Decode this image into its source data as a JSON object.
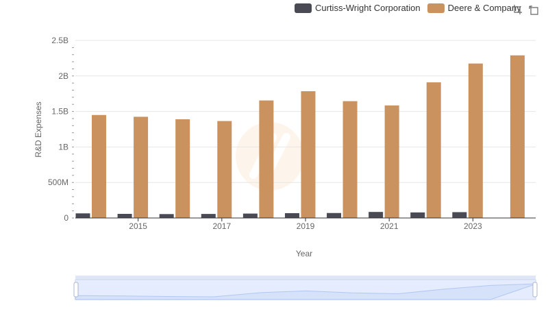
{
  "chart_data": {
    "type": "bar",
    "title": "",
    "xlabel": "Year",
    "ylabel": "R&D Expenses",
    "x_tick_labels": [
      "2015",
      "2017",
      "2019",
      "2021",
      "2023"
    ],
    "categories": [
      "2014",
      "2015",
      "2016",
      "2017",
      "2018",
      "2019",
      "2020",
      "2021",
      "2022",
      "2023",
      "2024"
    ],
    "ylim": [
      0,
      2500000000
    ],
    "y_ticks": [
      0,
      500000000,
      1000000000,
      1500000000,
      2000000000,
      2500000000
    ],
    "y_tick_labels": [
      "0",
      "500M",
      "1B",
      "1.5B",
      "2B",
      "2.5B"
    ],
    "grid": true,
    "legend_position": "top-right",
    "series": [
      {
        "name": "Curtiss-Wright Corporation",
        "color": "#4a4a55",
        "values": [
          65000000,
          58000000,
          55000000,
          57000000,
          62000000,
          68000000,
          70000000,
          85000000,
          78000000,
          82000000,
          null
        ]
      },
      {
        "name": "Deere & Company",
        "color": "#c9925e",
        "values": [
          1450000000,
          1425000000,
          1390000000,
          1365000000,
          1655000000,
          1785000000,
          1645000000,
          1585000000,
          1910000000,
          2175000000,
          2290000000
        ]
      }
    ]
  },
  "icons": {
    "zoom": "zoom-area-icon",
    "restore": "restore-icon"
  }
}
